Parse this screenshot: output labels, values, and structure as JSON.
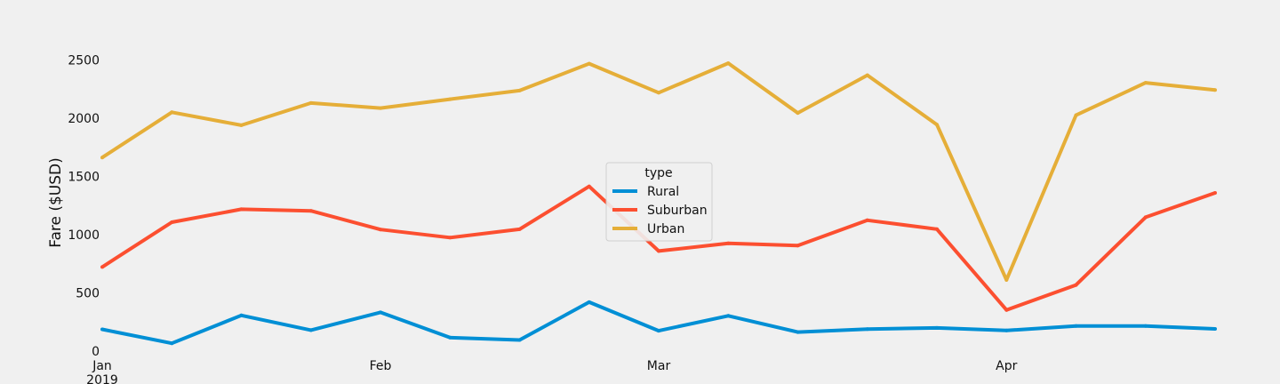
{
  "chart_data": {
    "type": "line",
    "ylabel": "Fare ($USD)",
    "xlabel": "",
    "ylim": [
      0,
      2800
    ],
    "yticks": [
      0,
      500,
      1000,
      1500,
      2000,
      2500
    ],
    "x": [
      "2019-01-06",
      "2019-01-13",
      "2019-01-20",
      "2019-01-27",
      "2019-02-03",
      "2019-02-10",
      "2019-02-17",
      "2019-02-24",
      "2019-03-03",
      "2019-03-10",
      "2019-03-17",
      "2019-03-24",
      "2019-03-31",
      "2019-04-07",
      "2019-04-14",
      "2019-04-21",
      "2019-04-28"
    ],
    "xticks": [
      {
        "label": "Jan",
        "sublabel": "2019",
        "x": "2019-01-06"
      },
      {
        "label": "Feb",
        "sublabel": "",
        "x": "2019-02-03"
      },
      {
        "label": "Mar",
        "sublabel": "",
        "x": "2019-03-03"
      },
      {
        "label": "Apr",
        "sublabel": "",
        "x": "2019-04-07"
      }
    ],
    "legend": {
      "title": "type",
      "placement": "center"
    },
    "grid": false,
    "series": [
      {
        "name": "Rural",
        "color": "#008fd5",
        "values": [
          187,
          67,
          307,
          180,
          333,
          116,
          95,
          420,
          175,
          303,
          163,
          189,
          199,
          177,
          215,
          215,
          191
        ]
      },
      {
        "name": "Suburban",
        "color": "#fc4f30",
        "values": [
          722,
          1106,
          1218,
          1204,
          1044,
          974,
          1046,
          1414,
          859,
          925,
          906,
          1123,
          1047,
          353,
          568,
          1149,
          1358
        ]
      },
      {
        "name": "Urban",
        "color": "#e5ae38",
        "values": [
          1662,
          2050,
          1939,
          2129,
          2086,
          2162,
          2236,
          2467,
          2218,
          2471,
          2044,
          2368,
          1944,
          611,
          2025,
          2303,
          2241
        ]
      }
    ]
  }
}
